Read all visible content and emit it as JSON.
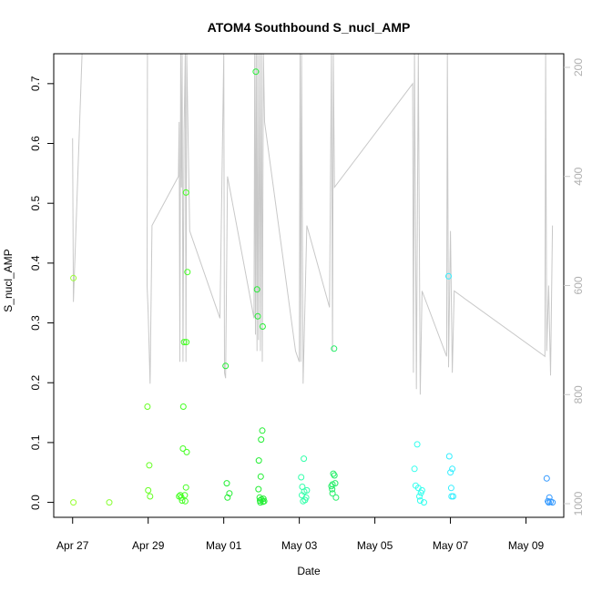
{
  "chart_data": {
    "type": "scatter",
    "title": "ATOM4 Southbound S_nucl_AMP",
    "xlabel": "Date",
    "ylabel": "S_nucl_AMP",
    "x_is_date": true,
    "x_ticks": [
      "Apr 27",
      "Apr 29",
      "May 01",
      "May 03",
      "May 05",
      "May 07",
      "May 09"
    ],
    "x_tick_values": [
      0,
      2,
      4,
      6,
      8,
      10,
      12
    ],
    "xlim": [
      -0.5,
      13.0
    ],
    "ylim": [
      -0.025,
      0.75
    ],
    "y_ticks": [
      "0.0",
      "0.1",
      "0.2",
      "0.3",
      "0.4",
      "0.5",
      "0.6",
      "0.7"
    ],
    "y_tick_values": [
      0.0,
      0.1,
      0.2,
      0.3,
      0.4,
      0.5,
      0.6,
      0.7
    ],
    "right_axis": {
      "ticks": [
        "200",
        "400",
        "600",
        "800",
        "1000"
      ],
      "tick_values": [
        200,
        400,
        600,
        800,
        1000
      ],
      "lim": [
        1025,
        175
      ],
      "color": "#c8c8c8"
    },
    "grid": false,
    "legend": "none",
    "series": [
      {
        "marker": "circle-open",
        "points": [
          {
            "x": 0.02,
            "y": 0.375,
            "color": "#99ff33"
          },
          {
            "x": 0.02,
            "y": 0.0,
            "color": "#99ff33"
          },
          {
            "x": 0.97,
            "y": 0.0,
            "color": "#88ff33"
          },
          {
            "x": 1.98,
            "y": 0.16,
            "color": "#66ff22"
          },
          {
            "x": 2.03,
            "y": 0.062,
            "color": "#66ff22"
          },
          {
            "x": 2.0,
            "y": 0.02,
            "color": "#66ff22"
          },
          {
            "x": 2.05,
            "y": 0.01,
            "color": "#66ff22"
          },
          {
            "x": 2.82,
            "y": 0.01,
            "color": "#44ff22"
          },
          {
            "x": 2.85,
            "y": 0.012,
            "color": "#44ff22"
          },
          {
            "x": 2.88,
            "y": 0.008,
            "color": "#44ff22"
          },
          {
            "x": 2.9,
            "y": 0.003,
            "color": "#44ff22"
          },
          {
            "x": 2.92,
            "y": 0.09,
            "color": "#44ff22"
          },
          {
            "x": 2.93,
            "y": 0.16,
            "color": "#44ff22"
          },
          {
            "x": 2.95,
            "y": 0.268,
            "color": "#44ff22"
          },
          {
            "x": 2.97,
            "y": 0.012,
            "color": "#44ff22"
          },
          {
            "x": 2.98,
            "y": 0.002,
            "color": "#44ff22"
          },
          {
            "x": 3.0,
            "y": 0.518,
            "color": "#44ff22"
          },
          {
            "x": 3.01,
            "y": 0.268,
            "color": "#44ff22"
          },
          {
            "x": 3.02,
            "y": 0.084,
            "color": "#44ff22"
          },
          {
            "x": 3.04,
            "y": 0.385,
            "color": "#44ff22"
          },
          {
            "x": 3.0,
            "y": 0.025,
            "color": "#44ff22"
          },
          {
            "x": 4.05,
            "y": 0.228,
            "color": "#22ee33"
          },
          {
            "x": 4.08,
            "y": 0.032,
            "color": "#22ee33"
          },
          {
            "x": 4.1,
            "y": 0.008,
            "color": "#22ee33"
          },
          {
            "x": 4.15,
            "y": 0.015,
            "color": "#22ee33"
          },
          {
            "x": 4.85,
            "y": 0.72,
            "color": "#22ee33"
          },
          {
            "x": 4.88,
            "y": 0.356,
            "color": "#22ee33"
          },
          {
            "x": 4.9,
            "y": 0.311,
            "color": "#22ee33"
          },
          {
            "x": 4.92,
            "y": 0.022,
            "color": "#22ee33"
          },
          {
            "x": 4.93,
            "y": 0.07,
            "color": "#22ee33"
          },
          {
            "x": 4.95,
            "y": 0.008,
            "color": "#22ee33"
          },
          {
            "x": 4.96,
            "y": 0.003,
            "color": "#22ee33"
          },
          {
            "x": 4.98,
            "y": 0.043,
            "color": "#22ee33"
          },
          {
            "x": 4.99,
            "y": 0.105,
            "color": "#22ee33"
          },
          {
            "x": 5.0,
            "y": 0.005,
            "color": "#22ee33"
          },
          {
            "x": 5.02,
            "y": 0.12,
            "color": "#22ee33"
          },
          {
            "x": 5.03,
            "y": 0.294,
            "color": "#22ee33"
          },
          {
            "x": 5.04,
            "y": 0.001,
            "color": "#22ee33"
          },
          {
            "x": 5.05,
            "y": 0.006,
            "color": "#22ee33"
          },
          {
            "x": 5.07,
            "y": 0.002,
            "color": "#22ee33"
          },
          {
            "x": 4.97,
            "y": 0.0,
            "color": "#22ee33"
          },
          {
            "x": 6.05,
            "y": 0.042,
            "color": "#33ffaa"
          },
          {
            "x": 6.07,
            "y": 0.012,
            "color": "#33ffaa"
          },
          {
            "x": 6.08,
            "y": 0.026,
            "color": "#33ffaa"
          },
          {
            "x": 6.1,
            "y": 0.002,
            "color": "#33ffaa"
          },
          {
            "x": 6.12,
            "y": 0.073,
            "color": "#33ffaa"
          },
          {
            "x": 6.13,
            "y": 0.018,
            "color": "#33ffaa"
          },
          {
            "x": 6.15,
            "y": 0.004,
            "color": "#33ffaa"
          },
          {
            "x": 6.2,
            "y": 0.02,
            "color": "#33ffaa"
          },
          {
            "x": 6.18,
            "y": 0.008,
            "color": "#33ffaa"
          },
          {
            "x": 6.85,
            "y": 0.027,
            "color": "#22ee66"
          },
          {
            "x": 6.87,
            "y": 0.022,
            "color": "#22ee66"
          },
          {
            "x": 6.88,
            "y": 0.015,
            "color": "#22ee66"
          },
          {
            "x": 6.9,
            "y": 0.048,
            "color": "#22ee66"
          },
          {
            "x": 6.92,
            "y": 0.257,
            "color": "#22ee66"
          },
          {
            "x": 6.93,
            "y": 0.045,
            "color": "#22ee66"
          },
          {
            "x": 6.95,
            "y": 0.032,
            "color": "#22ee66"
          },
          {
            "x": 6.97,
            "y": 0.008,
            "color": "#22ee66"
          },
          {
            "x": 6.88,
            "y": 0.03,
            "color": "#22ee66"
          },
          {
            "x": 9.05,
            "y": 0.056,
            "color": "#33ffee"
          },
          {
            "x": 9.08,
            "y": 0.028,
            "color": "#33ffee"
          },
          {
            "x": 9.12,
            "y": 0.097,
            "color": "#33ffee"
          },
          {
            "x": 9.15,
            "y": 0.024,
            "color": "#33ffee"
          },
          {
            "x": 9.18,
            "y": 0.01,
            "color": "#33ffee"
          },
          {
            "x": 9.2,
            "y": 0.003,
            "color": "#33ffee"
          },
          {
            "x": 9.22,
            "y": 0.016,
            "color": "#33ffee"
          },
          {
            "x": 9.25,
            "y": 0.02,
            "color": "#33ffee"
          },
          {
            "x": 9.3,
            "y": 0.0,
            "color": "#33ffee"
          },
          {
            "x": 9.95,
            "y": 0.378,
            "color": "#33eeff"
          },
          {
            "x": 9.97,
            "y": 0.077,
            "color": "#33eeff"
          },
          {
            "x": 10.0,
            "y": 0.05,
            "color": "#33eeff"
          },
          {
            "x": 10.02,
            "y": 0.024,
            "color": "#33eeff"
          },
          {
            "x": 10.03,
            "y": 0.01,
            "color": "#33eeff"
          },
          {
            "x": 10.05,
            "y": 0.056,
            "color": "#33eeff"
          },
          {
            "x": 10.07,
            "y": 0.01,
            "color": "#33eeff"
          },
          {
            "x": 12.55,
            "y": 0.04,
            "color": "#3399ff"
          },
          {
            "x": 12.58,
            "y": 0.002,
            "color": "#3399ff"
          },
          {
            "x": 12.6,
            "y": 0.0,
            "color": "#3399ff"
          },
          {
            "x": 12.62,
            "y": 0.008,
            "color": "#3399ff"
          },
          {
            "x": 12.65,
            "y": 0.001,
            "color": "#3399ff"
          },
          {
            "x": 12.7,
            "y": 0.0,
            "color": "#3399ff"
          }
        ]
      },
      {
        "line_color": "#c8c8c8",
        "axis": "right",
        "points": [
          [
            0.0,
            330
          ],
          [
            0.02,
            630
          ],
          [
            0.25,
            175
          ],
          [
            1.98,
            175
          ],
          [
            1.97,
            600
          ],
          [
            2.0,
            650
          ],
          [
            2.05,
            780
          ],
          [
            2.1,
            490
          ],
          [
            2.8,
            400
          ],
          [
            2.82,
            300
          ],
          [
            2.84,
            740
          ],
          [
            2.86,
            175
          ],
          [
            2.88,
            420
          ],
          [
            2.9,
            175
          ],
          [
            2.92,
            740
          ],
          [
            2.95,
            320
          ],
          [
            2.98,
            175
          ],
          [
            3.0,
            740
          ],
          [
            3.02,
            175
          ],
          [
            3.1,
            500
          ],
          [
            3.9,
            660
          ],
          [
            4.0,
            175
          ],
          [
            4.02,
            760
          ],
          [
            4.05,
            770
          ],
          [
            4.1,
            400
          ],
          [
            4.8,
            660
          ],
          [
            4.82,
            175
          ],
          [
            4.84,
            690
          ],
          [
            4.86,
            175
          ],
          [
            4.88,
            720
          ],
          [
            4.9,
            175
          ],
          [
            4.92,
            700
          ],
          [
            4.95,
            175
          ],
          [
            4.97,
            720
          ],
          [
            5.0,
            175
          ],
          [
            5.02,
            740
          ],
          [
            5.05,
            175
          ],
          [
            5.08,
            300
          ],
          [
            5.9,
            720
          ],
          [
            6.0,
            740
          ],
          [
            6.02,
            175
          ],
          [
            6.04,
            740
          ],
          [
            6.06,
            175
          ],
          [
            6.1,
            780
          ],
          [
            6.2,
            490
          ],
          [
            6.8,
            640
          ],
          [
            6.85,
            175
          ],
          [
            6.88,
            720
          ],
          [
            6.9,
            175
          ],
          [
            6.93,
            420
          ],
          [
            9.0,
            230
          ],
          [
            9.02,
            760
          ],
          [
            9.05,
            175
          ],
          [
            9.1,
            790
          ],
          [
            9.15,
            175
          ],
          [
            9.2,
            800
          ],
          [
            9.25,
            610
          ],
          [
            9.9,
            730
          ],
          [
            9.92,
            175
          ],
          [
            9.95,
            750
          ],
          [
            10.0,
            500
          ],
          [
            10.05,
            760
          ],
          [
            10.1,
            610
          ],
          [
            12.5,
            730
          ],
          [
            12.52,
            175
          ],
          [
            12.55,
            720
          ],
          [
            12.6,
            600
          ],
          [
            12.65,
            765
          ],
          [
            12.7,
            490
          ]
        ]
      }
    ]
  }
}
